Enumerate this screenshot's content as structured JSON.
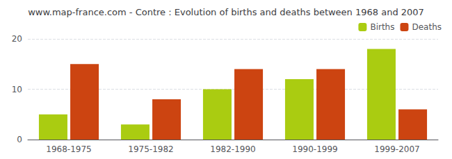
{
  "chart_data": {
    "type": "bar",
    "title": "www.map-france.com - Contre : Evolution of births and deaths between 1968 and 2007",
    "categories": [
      "1968-1975",
      "1975-1982",
      "1982-1990",
      "1990-1999",
      "1999-2007"
    ],
    "series": [
      {
        "name": "Births",
        "color": "#aacc11",
        "values": [
          5,
          3,
          10,
          12,
          18
        ]
      },
      {
        "name": "Deaths",
        "color": "#cc4411",
        "values": [
          15,
          8,
          14,
          14,
          6
        ]
      }
    ],
    "ylim": [
      0,
      20
    ],
    "yticks": [
      0,
      10,
      20
    ],
    "grid": true,
    "legend": "upper right"
  }
}
